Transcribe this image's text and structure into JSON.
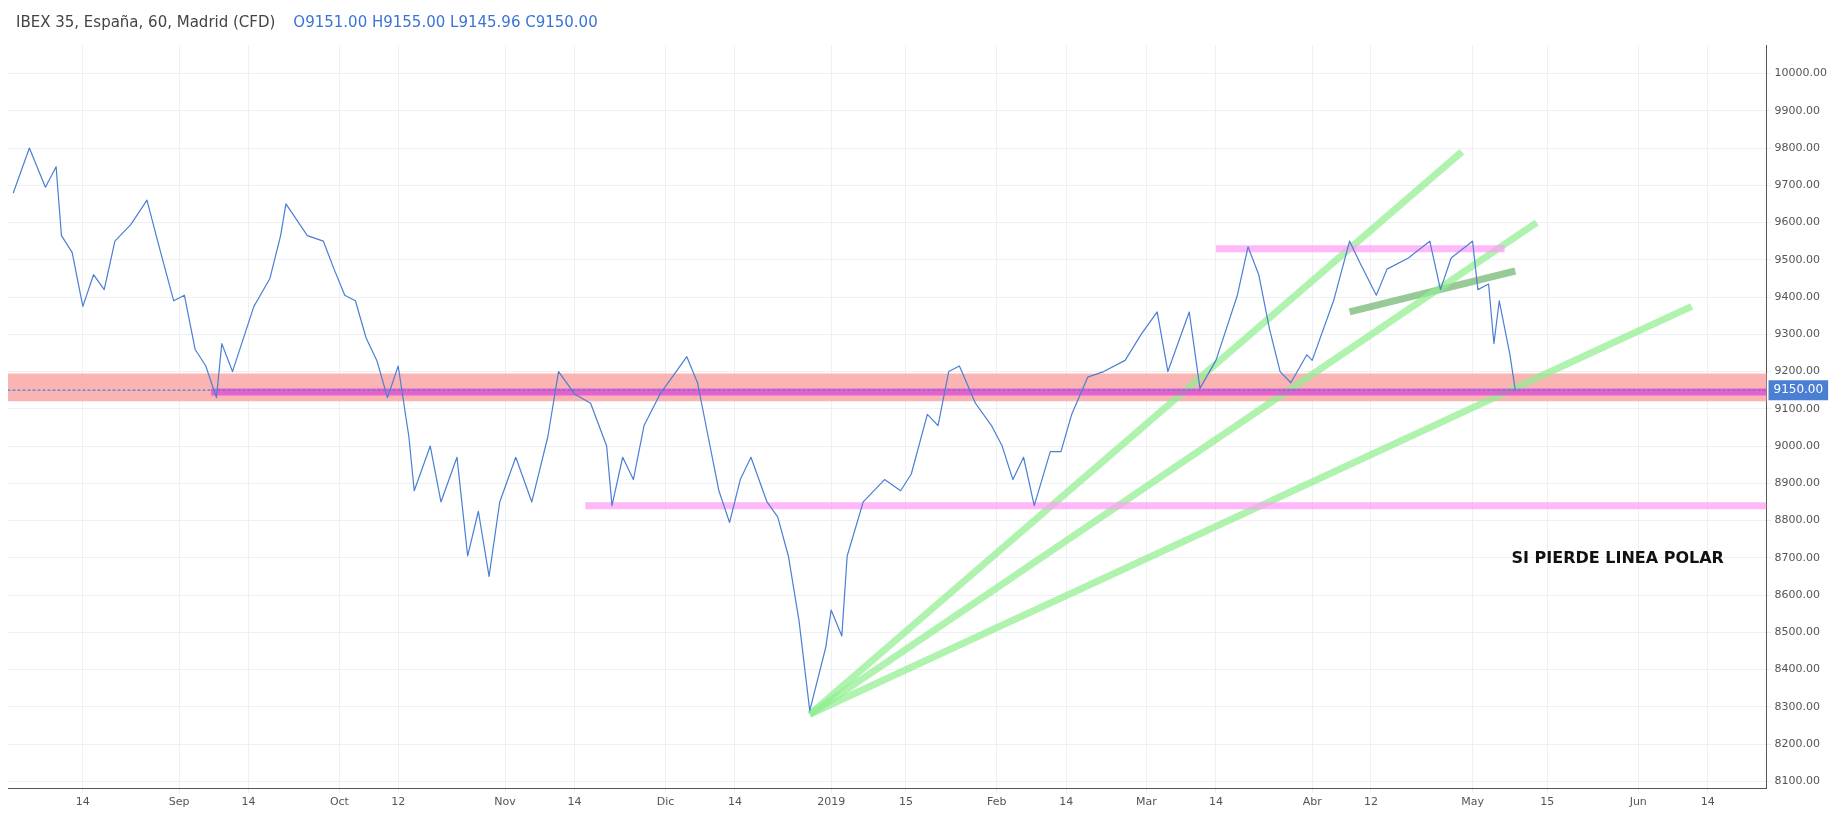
{
  "chart_data": {
    "type": "line",
    "title": "IBEX 35, España, 60, Madrid (CFD)",
    "subtitle": "O9151.00 H9155.00 L9145.96 C9150.00",
    "annotations": [
      "SI PIERDE LINEA POLAR",
      "9150.00"
    ],
    "xlim": [
      "2018-07-31",
      "2019-06-25"
    ],
    "xticks": [
      {
        "value": "2018-08-14",
        "label": "14"
      },
      {
        "value": "2018-09-01",
        "label": "Sep"
      },
      {
        "value": "2018-09-14",
        "label": "14"
      },
      {
        "value": "2018-10-01",
        "label": "Oct"
      },
      {
        "value": "2018-10-12",
        "label": "12"
      },
      {
        "value": "2018-11-01",
        "label": "Nov"
      },
      {
        "value": "2018-11-14",
        "label": "14"
      },
      {
        "value": "2018-12-01",
        "label": "Dic"
      },
      {
        "value": "2018-12-14",
        "label": "14"
      },
      {
        "value": "2019-01-01",
        "label": "2019"
      },
      {
        "value": "2019-01-15",
        "label": "15"
      },
      {
        "value": "2019-02-01",
        "label": "Feb"
      },
      {
        "value": "2019-02-14",
        "label": "14"
      },
      {
        "value": "2019-03-01",
        "label": "Mar"
      },
      {
        "value": "2019-03-14",
        "label": "14"
      },
      {
        "value": "2019-04-01",
        "label": "Abr"
      },
      {
        "value": "2019-04-12",
        "label": "12"
      },
      {
        "value": "2019-05-01",
        "label": "May"
      },
      {
        "value": "2019-05-15",
        "label": "15"
      },
      {
        "value": "2019-06-01",
        "label": "Jun"
      },
      {
        "value": "2019-06-14",
        "label": "14"
      }
    ],
    "ylim": [
      8080,
      10075
    ],
    "yticks": [
      {
        "value": 8100,
        "label": "8100.00"
      },
      {
        "value": 8200,
        "label": "8200.00"
      },
      {
        "value": 8300,
        "label": "8300.00"
      },
      {
        "value": 8400,
        "label": "8400.00"
      },
      {
        "value": 8500,
        "label": "8500.00"
      },
      {
        "value": 8600,
        "label": "8600.00"
      },
      {
        "value": 8700,
        "label": "8700.00"
      },
      {
        "value": 8800,
        "label": "8800.00"
      },
      {
        "value": 8900,
        "label": "8900.00"
      },
      {
        "value": 9000,
        "label": "9000.00"
      },
      {
        "value": 9100,
        "label": "9100.00"
      },
      {
        "value": 9200,
        "label": "9200.00"
      },
      {
        "value": 9300,
        "label": "9300.00"
      },
      {
        "value": 9400,
        "label": "9400.00"
      },
      {
        "value": 9500,
        "label": "9500.00"
      },
      {
        "value": 9600,
        "label": "9600.00"
      },
      {
        "value": 9700,
        "label": "9700.00"
      },
      {
        "value": 9800,
        "label": "9800.00"
      },
      {
        "value": 9900,
        "label": "9900.00"
      },
      {
        "value": 10000,
        "label": "10000.00"
      }
    ],
    "grid": true,
    "legend": false,
    "marker": "none",
    "line_style": "solid",
    "bands": [
      {
        "axis": "y",
        "from": 9120,
        "to": 9195,
        "color": "#f9a3a3"
      }
    ],
    "series": [
      {
        "color": "#4a7fd4",
        "x": [
          "2018-08-01",
          "2018-08-04",
          "2018-08-07",
          "2018-08-09",
          "2018-08-10",
          "2018-08-12",
          "2018-08-14",
          "2018-08-16",
          "2018-08-18",
          "2018-08-20",
          "2018-08-23",
          "2018-08-26",
          "2018-08-28",
          "2018-08-31",
          "2018-09-02",
          "2018-09-04",
          "2018-09-06",
          "2018-09-08",
          "2018-09-09",
          "2018-09-11",
          "2018-09-15",
          "2018-09-18",
          "2018-09-20",
          "2018-09-21",
          "2018-09-25",
          "2018-09-28",
          "2018-09-30",
          "2018-10-02",
          "2018-10-04",
          "2018-10-06",
          "2018-10-08",
          "2018-10-10",
          "2018-10-12",
          "2018-10-14",
          "2018-10-15",
          "2018-10-18",
          "2018-10-20",
          "2018-10-23",
          "2018-10-25",
          "2018-10-27",
          "2018-10-29",
          "2018-10-31",
          "2018-11-03",
          "2018-11-06",
          "2018-11-09",
          "2018-11-11",
          "2018-11-14",
          "2018-11-17",
          "2018-11-20",
          "2018-11-21",
          "2018-11-23",
          "2018-11-25",
          "2018-11-27",
          "2018-11-30",
          "2018-12-03",
          "2018-12-05",
          "2018-12-07",
          "2018-12-09",
          "2018-12-11",
          "2018-12-13",
          "2018-12-15",
          "2018-12-17",
          "2018-12-20",
          "2018-12-22",
          "2018-12-24",
          "2018-12-26",
          "2018-12-28",
          "2018-12-31",
          "2019-01-01",
          "2019-01-03",
          "2019-01-04",
          "2019-01-07",
          "2019-01-11",
          "2019-01-14",
          "2019-01-16",
          "2019-01-19",
          "2019-01-21",
          "2019-01-23",
          "2019-01-25",
          "2019-01-28",
          "2019-01-31",
          "2019-02-02",
          "2019-02-04",
          "2019-02-06",
          "2019-02-08",
          "2019-02-11",
          "2019-02-13",
          "2019-02-15",
          "2019-02-18",
          "2019-02-21",
          "2019-02-25",
          "2019-02-28",
          "2019-03-03",
          "2019-03-05",
          "2019-03-09",
          "2019-03-11",
          "2019-03-14",
          "2019-03-18",
          "2019-03-20",
          "2019-03-22",
          "2019-03-24",
          "2019-03-26",
          "2019-03-28",
          "2019-03-31",
          "2019-04-01",
          "2019-04-05",
          "2019-04-08",
          "2019-04-10",
          "2019-04-13",
          "2019-04-15",
          "2019-04-19",
          "2019-04-23",
          "2019-04-25",
          "2019-04-27",
          "2019-05-01",
          "2019-05-02",
          "2019-05-04",
          "2019-05-05",
          "2019-05-06",
          "2019-05-08",
          "2019-05-09"
        ],
        "values": [
          9680,
          9800,
          9695,
          9750,
          9565,
          9520,
          9375,
          9460,
          9420,
          9550,
          9595,
          9660,
          9550,
          9390,
          9405,
          9260,
          9215,
          9130,
          9275,
          9200,
          9375,
          9450,
          9565,
          9650,
          9565,
          9550,
          9475,
          9405,
          9390,
          9290,
          9230,
          9130,
          9215,
          9025,
          8880,
          9000,
          8850,
          8970,
          8705,
          8825,
          8650,
          8850,
          8970,
          8850,
          9025,
          9200,
          9140,
          9115,
          9000,
          8840,
          8970,
          8910,
          9055,
          9140,
          9200,
          9240,
          9170,
          9025,
          8880,
          8795,
          8910,
          8970,
          8850,
          8810,
          8705,
          8530,
          8290,
          8460,
          8560,
          8490,
          8705,
          8850,
          8910,
          8880,
          8925,
          9085,
          9055,
          9200,
          9215,
          9115,
          9055,
          9000,
          8910,
          8970,
          8840,
          8985,
          8985,
          9085,
          9185,
          9200,
          9230,
          9300,
          9360,
          9200,
          9360,
          9155,
          9230,
          9405,
          9535,
          9460,
          9315,
          9200,
          9170,
          9245,
          9230,
          9390,
          9550,
          9490,
          9405,
          9475,
          9505,
          9550,
          9420,
          9505,
          9550,
          9420,
          9435,
          9275,
          9390,
          9245,
          9150
        ]
      },
      {
        "color": "#e040d8",
        "x": [
          "2018-09-07",
          "2019-06-25"
        ],
        "values": [
          9145,
          9145
        ]
      },
      {
        "color": "#4a7fd4",
        "x": [
          "2018-07-31",
          "2019-06-25"
        ],
        "values": [
          9150,
          9150
        ],
        "line_style": "dotted"
      },
      {
        "color": "#ff9cf5",
        "x": [
          "2018-11-16",
          "2019-06-25"
        ],
        "values": [
          8840,
          8840
        ]
      },
      {
        "color": "#ff9cf5",
        "x": [
          "2019-03-14",
          "2019-05-07"
        ],
        "values": [
          9530,
          9530
        ]
      },
      {
        "color": "#90ee90",
        "x": [
          "2018-12-28",
          "2019-04-29"
        ],
        "values": [
          8280,
          9790
        ]
      },
      {
        "color": "#90ee90",
        "x": [
          "2018-12-28",
          "2019-05-13"
        ],
        "values": [
          8280,
          9600
        ]
      },
      {
        "color": "#90ee90",
        "x": [
          "2018-12-28",
          "2019-06-11"
        ],
        "values": [
          8280,
          9375
        ]
      },
      {
        "color": "#6fb56f",
        "x": [
          "2019-04-08",
          "2019-05-09"
        ],
        "values": [
          9360,
          9470
        ]
      }
    ]
  }
}
